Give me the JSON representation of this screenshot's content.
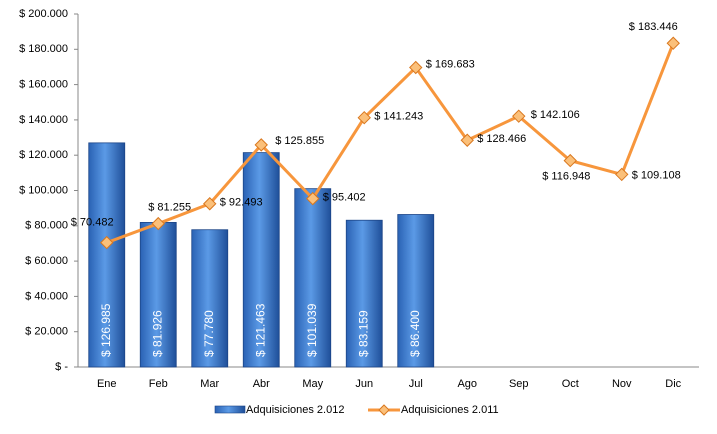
{
  "chart_data": {
    "type": "bar",
    "categories": [
      "Ene",
      "Feb",
      "Mar",
      "Abr",
      "May",
      "Jun",
      "Jul",
      "Ago",
      "Sep",
      "Oct",
      "Nov",
      "Dic"
    ],
    "series": [
      {
        "name": "Adquisiciones 2.012",
        "type": "bar",
        "color": "#3a7bd5",
        "values": [
          126985,
          81926,
          77780,
          121463,
          101039,
          83159,
          86400,
          null,
          null,
          null,
          null,
          null
        ],
        "value_labels": [
          "$ 126.985",
          "$ 81.926",
          "$ 77.780",
          "$ 121.463",
          "$ 101.039",
          "$ 83.159",
          "$ 86.400",
          null,
          null,
          null,
          null,
          null
        ]
      },
      {
        "name": "Adquisiciones 2.011",
        "type": "line",
        "color": "#f7963c",
        "values": [
          70482,
          81255,
          92493,
          125855,
          95402,
          141243,
          169683,
          128466,
          142106,
          116948,
          109108,
          183446
        ],
        "value_labels": [
          "$ 70.482",
          "$ 81.255",
          "$ 92.493",
          "$ 125.855",
          "$ 95.402",
          "$ 141.243",
          "$ 169.683",
          "$ 128.466",
          "$ 142.106",
          "$ 116.948",
          "$ 109.108",
          "$ 183.446"
        ]
      }
    ],
    "ylim": [
      0,
      200000
    ],
    "yticks": [
      {
        "value": 0,
        "label": "$ -"
      },
      {
        "value": 20000,
        "label": "$ 20.000"
      },
      {
        "value": 40000,
        "label": "$ 40.000"
      },
      {
        "value": 60000,
        "label": "$ 60.000"
      },
      {
        "value": 80000,
        "label": "$ 80.000"
      },
      {
        "value": 100000,
        "label": "$ 100.000"
      },
      {
        "value": 120000,
        "label": "$ 120.000"
      },
      {
        "value": 140000,
        "label": "$ 140.000"
      },
      {
        "value": 160000,
        "label": "$ 160.000"
      },
      {
        "value": 180000,
        "label": "$ 180.000"
      },
      {
        "value": 200000,
        "label": "$ 200.000"
      }
    ],
    "grid": false,
    "legend": "bottom"
  }
}
